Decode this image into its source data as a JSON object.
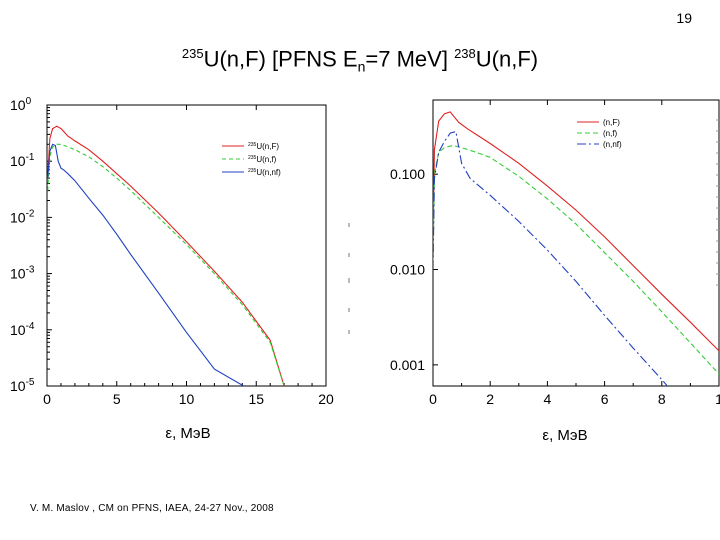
{
  "page_number": "19",
  "title": {
    "left_mass": "235",
    "left_reaction": "U(n,F)",
    "bracket_open": "[PFNS E",
    "bracket_sub": "n",
    "bracket_close": "=7 MeV]",
    "right_mass": "238",
    "right_reaction": "U(n,F)"
  },
  "footer": "V. M. Maslov ,   CM on PFNS, IAEA, 24-27 Nov., 2008",
  "colors": {
    "nF": "#e02020",
    "nf": "#33cc33",
    "nnf": "#2040c0"
  },
  "chart_data": [
    {
      "type": "line",
      "title": "",
      "xlabel": "ε, MэB",
      "ylabel": "",
      "xlim": [
        0,
        20
      ],
      "ylim": [
        1e-05,
        1
      ],
      "yscale": "log",
      "xticks": [
        "0",
        "5",
        "10",
        "15",
        "20"
      ],
      "yticks": [
        {
          "base": "10",
          "exp": "0"
        },
        {
          "base": "10",
          "exp": "-1"
        },
        {
          "base": "10",
          "exp": "-2"
        },
        {
          "base": "10",
          "exp": "-3"
        },
        {
          "base": "10",
          "exp": "-4"
        },
        {
          "base": "10",
          "exp": "-5"
        }
      ],
      "legend_position": "top-right",
      "series": [
        {
          "name_mass": "235",
          "name": "U(n,F)",
          "color": "#e02020",
          "dash": "solid",
          "x": [
            0.05,
            0.2,
            0.4,
            0.7,
            1.0,
            1.5,
            2,
            3,
            4,
            5,
            6,
            8,
            10,
            12,
            14,
            16,
            17
          ],
          "y": [
            0.05,
            0.25,
            0.38,
            0.42,
            0.38,
            0.28,
            0.23,
            0.16,
            0.1,
            0.06,
            0.036,
            0.012,
            0.0037,
            0.0011,
            0.00031,
            6.5e-05,
            1e-05
          ]
        },
        {
          "name_mass": "235",
          "name": "U(n,f)",
          "color": "#33cc33",
          "dash": "4,3",
          "x": [
            0.05,
            0.2,
            0.4,
            0.7,
            1.0,
            1.5,
            2,
            3,
            4,
            5,
            6,
            8,
            10,
            12,
            14,
            16,
            17
          ],
          "y": [
            0.03,
            0.12,
            0.18,
            0.2,
            0.2,
            0.18,
            0.16,
            0.12,
            0.08,
            0.05,
            0.03,
            0.01,
            0.0033,
            0.001,
            0.00028,
            6e-05,
            1e-05
          ]
        },
        {
          "name_mass": "235",
          "name": "U(n,nf)",
          "color": "#2040c0",
          "dash": "solid",
          "x": [
            0.05,
            0.2,
            0.4,
            0.6,
            0.8,
            1.0,
            1.2,
            1.5,
            2,
            3,
            4,
            5,
            6,
            8,
            10,
            12,
            14.1
          ],
          "y": [
            0.05,
            0.15,
            0.2,
            0.19,
            0.1,
            0.075,
            0.07,
            0.06,
            0.045,
            0.022,
            0.011,
            0.005,
            0.0022,
            0.00045,
            9e-05,
            2e-05,
            1e-05
          ]
        }
      ]
    },
    {
      "type": "line",
      "title": "",
      "xlabel": "ε, MэB",
      "ylabel": "",
      "xlim": [
        0,
        10
      ],
      "ylim": [
        0.0006,
        0.6
      ],
      "yscale": "log",
      "xticks": [
        "0",
        "2",
        "4",
        "6",
        "8",
        "1"
      ],
      "yticks": [
        "0.100",
        "0.010",
        "0.001"
      ],
      "legend_position": "top-right",
      "series": [
        {
          "name": "(n,F)",
          "color": "#e02020",
          "dash": "solid",
          "x": [
            0,
            0.05,
            0.2,
            0.4,
            0.6,
            0.9,
            1.2,
            2,
            3,
            4,
            5,
            6,
            7,
            8,
            9,
            10
          ],
          "y": [
            0.02,
            0.18,
            0.36,
            0.43,
            0.45,
            0.35,
            0.3,
            0.21,
            0.13,
            0.075,
            0.042,
            0.022,
            0.011,
            0.0055,
            0.0028,
            0.0014
          ]
        },
        {
          "name": "(n,f)",
          "color": "#33cc33",
          "dash": "5,3",
          "x": [
            0,
            0.05,
            0.2,
            0.4,
            0.7,
            1.0,
            1.5,
            2,
            3,
            4,
            5,
            6,
            7,
            8,
            9,
            10
          ],
          "y": [
            0.01,
            0.1,
            0.17,
            0.19,
            0.2,
            0.19,
            0.17,
            0.15,
            0.095,
            0.055,
            0.03,
            0.015,
            0.0075,
            0.0036,
            0.0017,
            0.0008
          ]
        },
        {
          "name": "(n,nf)",
          "color": "#2040c0",
          "dash": "9,3,2,3",
          "x": [
            0,
            0.05,
            0.2,
            0.4,
            0.6,
            0.8,
            1.0,
            1.3,
            2,
            3,
            4,
            5,
            6,
            7,
            8,
            8.7
          ],
          "y": [
            0.01,
            0.09,
            0.17,
            0.22,
            0.27,
            0.28,
            0.13,
            0.09,
            0.06,
            0.032,
            0.016,
            0.0075,
            0.0033,
            0.0015,
            0.0007,
            0.0004
          ]
        }
      ]
    }
  ]
}
